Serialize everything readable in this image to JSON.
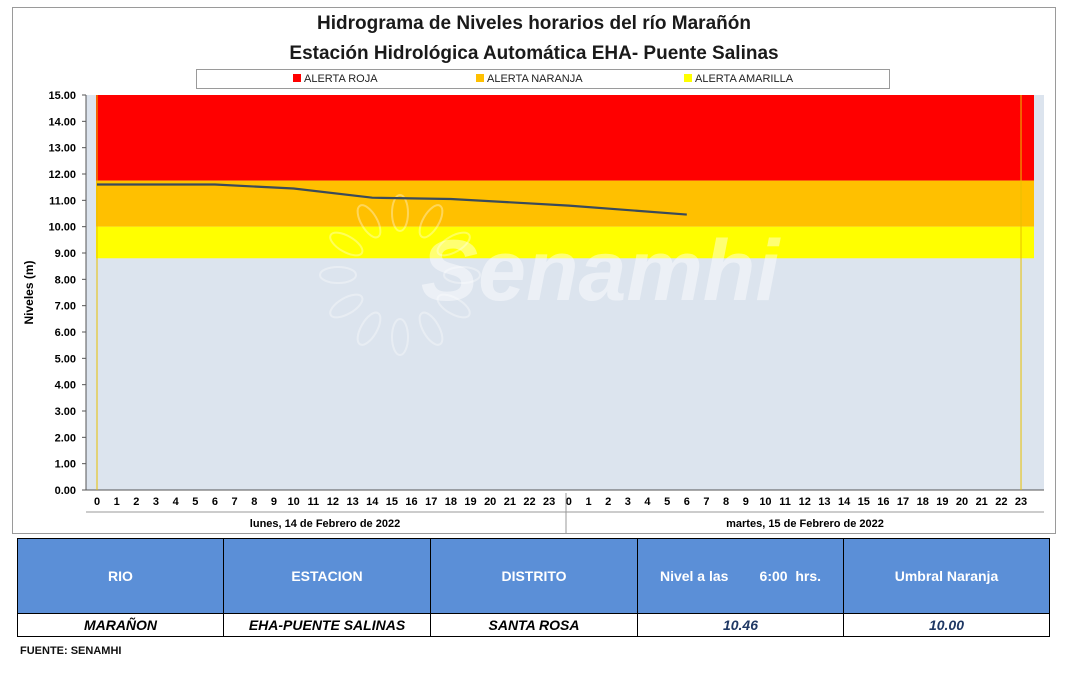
{
  "chart_data": {
    "type": "line",
    "title": "Hidrograma de Niveles horarios del río Marañón",
    "subtitle": "Estación Hidrológica Automática EHA- Puente Salinas",
    "ylabel": "Niveles  (m)",
    "xlabel": "",
    "ylim": [
      0,
      15
    ],
    "yticks": [
      "0.00",
      "1.00",
      "2.00",
      "3.00",
      "4.00",
      "5.00",
      "6.00",
      "7.00",
      "8.00",
      "9.00",
      "10.00",
      "11.00",
      "12.00",
      "13.00",
      "14.00",
      "15.00"
    ],
    "x_hour_labels": [
      "0",
      "1",
      "2",
      "3",
      "4",
      "5",
      "6",
      "7",
      "8",
      "9",
      "10",
      "11",
      "12",
      "13",
      "14",
      "15",
      "16",
      "17",
      "18",
      "19",
      "20",
      "21",
      "22",
      "23",
      "0",
      "1",
      "2",
      "3",
      "4",
      "5",
      "6",
      "7",
      "8",
      "9",
      "10",
      "11",
      "12",
      "13",
      "14",
      "15",
      "16",
      "17",
      "18",
      "19",
      "20",
      "21",
      "22",
      "23"
    ],
    "day_labels": [
      "lunes, 14 de Febrero de 2022",
      "martes, 15 de Febrero de 2022"
    ],
    "alert_bands": [
      {
        "name": "ALERTA ROJA",
        "from": 11.75,
        "to": 15,
        "color": "#ff0000"
      },
      {
        "name": "ALERTA NARANJA",
        "from": 10,
        "to": 11.75,
        "color": "#ffc000"
      },
      {
        "name": "ALERTA AMARILLA",
        "from": 8.8,
        "to": 10,
        "color": "#ffff00"
      }
    ],
    "background_color": "#dce4ee",
    "legend_position": "top",
    "grid": false,
    "series": [
      {
        "color": "#3a4a5a",
        "x": [
          0,
          6,
          10,
          14,
          18,
          24,
          30
        ],
        "values": [
          11.6,
          11.6,
          11.45,
          11.1,
          11.05,
          10.8,
          10.46
        ]
      }
    ]
  },
  "table": {
    "headers": [
      "RIO",
      "ESTACION",
      "DISTRITO",
      "Nivel a las        6:00  hrs.",
      "Umbral Naranja"
    ],
    "row": [
      "MARAÑON",
      "EHA-PUENTE SALINAS",
      "SANTA ROSA",
      "10.46",
      "10.00"
    ]
  },
  "watermark": "Senamhi",
  "source": "FUENTE:  SENAMHI"
}
